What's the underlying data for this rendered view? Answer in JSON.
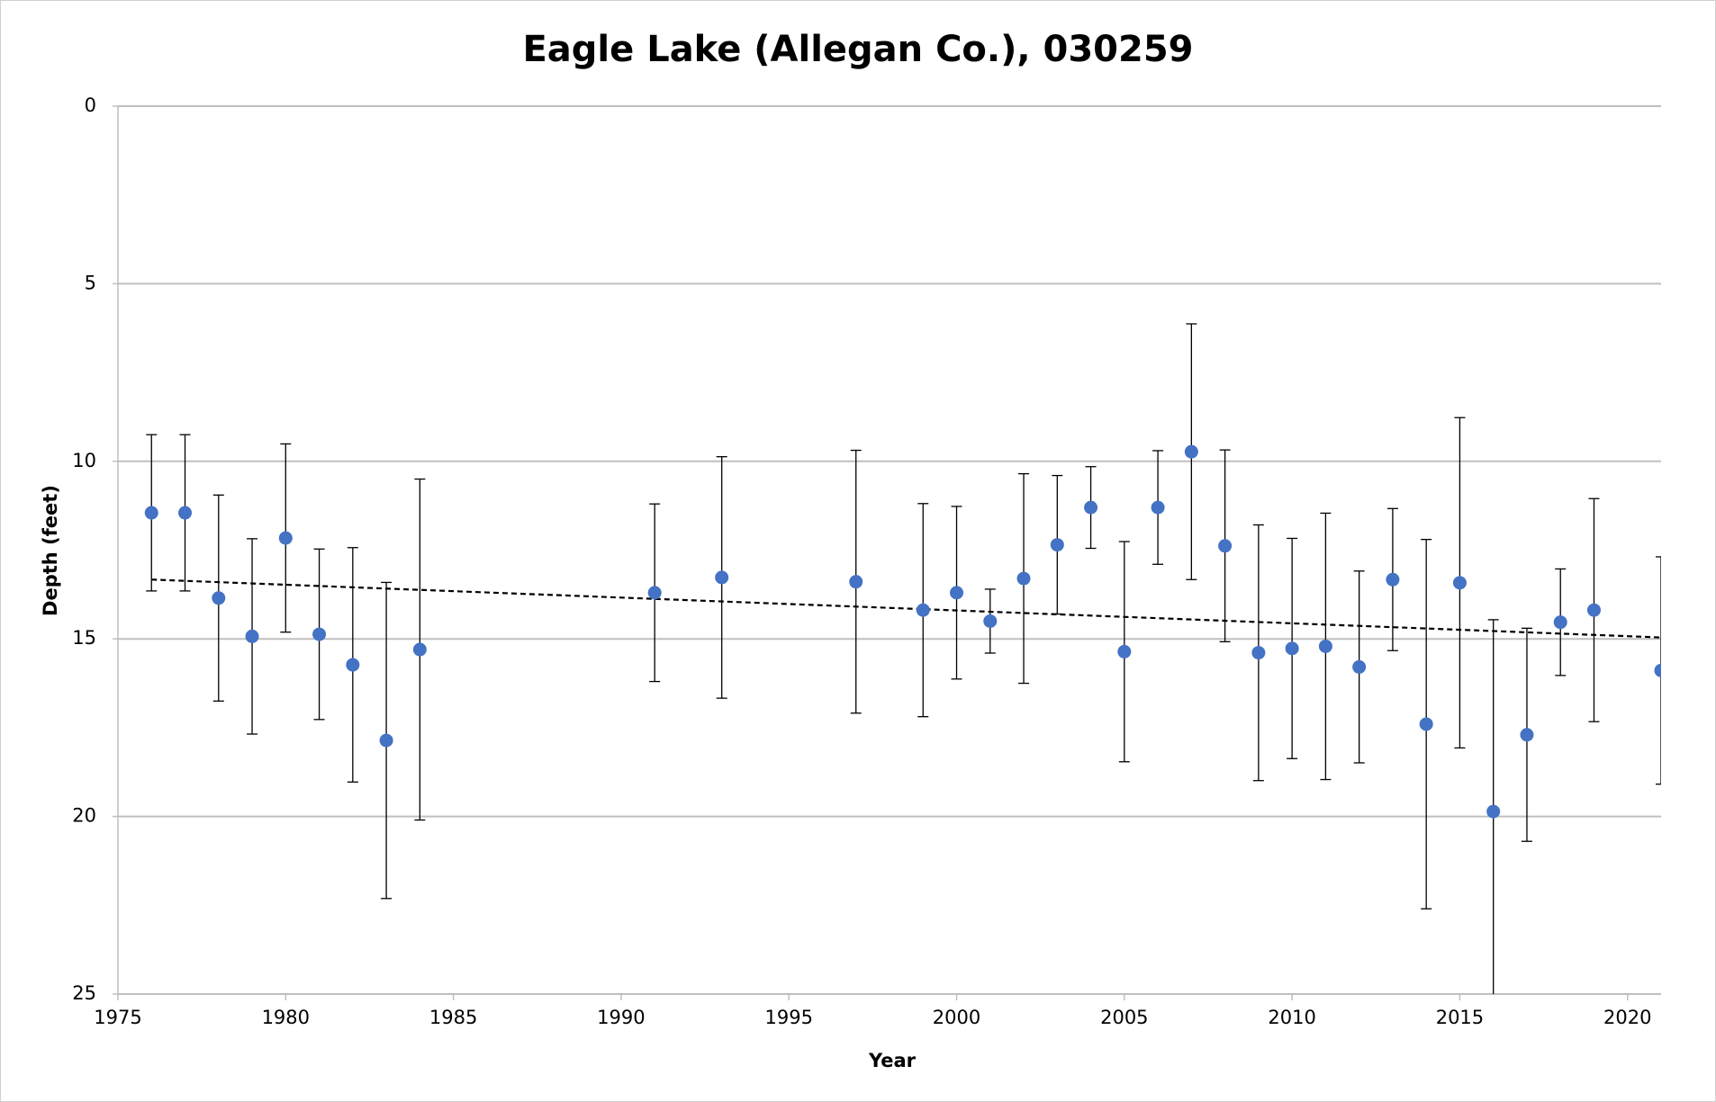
{
  "chart_data": {
    "type": "scatter",
    "title": "Eagle Lake (Allegan Co.), 030259",
    "x_label": "Year",
    "y_label": "Depth (feet)",
    "xlim": [
      1975,
      2021
    ],
    "xticks": [
      1975,
      1980,
      1985,
      1990,
      1995,
      2000,
      2005,
      2010,
      2015,
      2020
    ],
    "ylim": [
      0,
      25
    ],
    "yticks": [
      0,
      5,
      10,
      15,
      20,
      25
    ],
    "y_inverted": true,
    "grid": true,
    "series": [
      {
        "name": "Depth",
        "color": "#4472c4",
        "x": [
          1976,
          1977,
          1978,
          1979,
          1980,
          1981,
          1982,
          1983,
          1984,
          1991,
          1993,
          1997,
          1999,
          2000,
          2001,
          2002,
          2003,
          2004,
          2005,
          2006,
          2007,
          2008,
          2009,
          2010,
          2011,
          2012,
          2013,
          2014,
          2015,
          2016,
          2017,
          2018,
          2019,
          2021
        ],
        "values": [
          11.45,
          11.45,
          13.85,
          14.93,
          12.16,
          14.87,
          15.73,
          17.86,
          15.3,
          13.7,
          13.27,
          13.39,
          14.19,
          13.7,
          14.5,
          13.3,
          12.35,
          11.3,
          15.36,
          11.3,
          9.73,
          12.38,
          15.39,
          15.27,
          15.21,
          15.79,
          13.33,
          17.4,
          13.42,
          19.86,
          17.7,
          14.53,
          14.19,
          15.89
        ],
        "errors": [
          2.2,
          2.2,
          2.9,
          2.75,
          2.65,
          2.4,
          3.3,
          4.45,
          4.8,
          2.5,
          3.4,
          3.7,
          3.0,
          2.43,
          0.9,
          2.95,
          1.95,
          1.15,
          3.1,
          1.6,
          3.6,
          2.7,
          3.6,
          3.1,
          3.75,
          2.7,
          2.0,
          5.2,
          4.65,
          5.4,
          3.0,
          1.5,
          3.14,
          3.2
        ]
      }
    ],
    "trendline": {
      "x": [
        1976,
        2021
      ],
      "values": [
        13.33,
        14.96
      ],
      "color": "#000000"
    }
  }
}
